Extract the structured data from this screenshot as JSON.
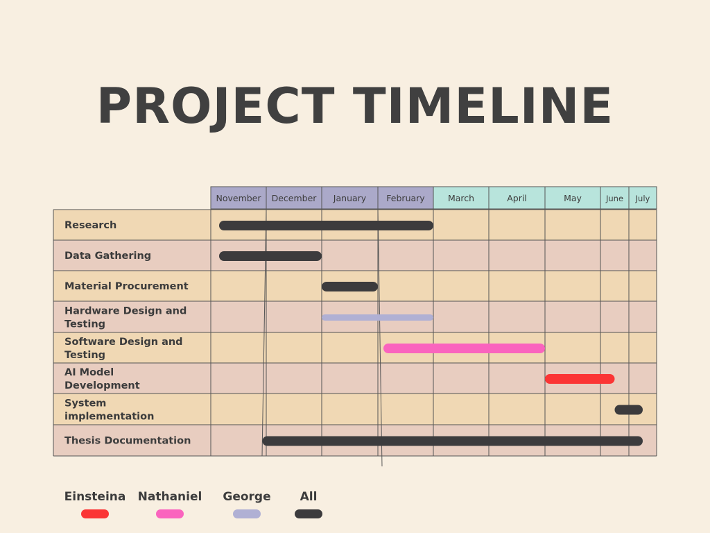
{
  "title": "PROJECT TIMELINE",
  "colors": {
    "background": "#f8efe1",
    "row_odd": "#f0d8b4",
    "row_even": "#e8cdc0",
    "header_purple": "#aba9c9",
    "header_teal": "#b8e4dc",
    "grid": "#555555",
    "header_text": "#3c3c3c"
  },
  "chart_data": {
    "type": "gantt",
    "months": [
      "November",
      "December",
      "January",
      "February",
      "March",
      "April",
      "May",
      "June",
      "July"
    ],
    "tasks": [
      {
        "label": "Research",
        "start": 0.15,
        "end": 4.0,
        "owner": "All"
      },
      {
        "label": "Data Gathering",
        "start": 0.15,
        "end": 2.0,
        "owner": "All"
      },
      {
        "label": "Material Procurement",
        "start": 2.0,
        "end": 3.0,
        "owner": "All"
      },
      {
        "label": "Hardware Design and Testing",
        "start": 2.0,
        "end": 4.0,
        "owner": "George"
      },
      {
        "label": "Software Design and Testing",
        "start": 3.1,
        "end": 6.0,
        "owner": "Nathaniel"
      },
      {
        "label": "AI Model Development",
        "start": 6.0,
        "end": 7.5,
        "owner": "Einsteina"
      },
      {
        "label": "System implementation",
        "start": 7.5,
        "end": 8.5,
        "owner": "All"
      },
      {
        "label": "Thesis Documentation",
        "start": 0.93,
        "end": 8.5,
        "owner": "All"
      }
    ],
    "legend": [
      {
        "name": "Einsteina",
        "color": "#fb3535"
      },
      {
        "name": "Nathaniel",
        "color": "#fa64be"
      },
      {
        "name": "George",
        "color": "#b0b0d4"
      },
      {
        "name": "All",
        "color": "#3c3b3d"
      }
    ]
  }
}
